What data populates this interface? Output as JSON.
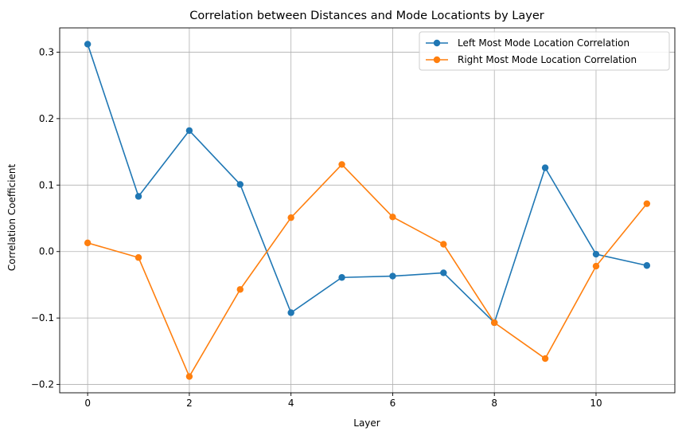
{
  "chart_data": {
    "type": "line",
    "title": "Correlation between Distances and Mode Locationts by Layer",
    "xlabel": "Layer",
    "ylabel": "Correlation Coefficient",
    "x": [
      0,
      1,
      2,
      3,
      4,
      5,
      6,
      7,
      8,
      9,
      10,
      11
    ],
    "xlim": [
      -0.55,
      11.55
    ],
    "ylim": [
      -0.2125,
      0.3365
    ],
    "xticks": [
      0,
      2,
      4,
      6,
      8,
      10
    ],
    "xtick_labels": [
      "0",
      "2",
      "4",
      "6",
      "8",
      "10"
    ],
    "yticks": [
      -0.2,
      -0.1,
      0.0,
      0.1,
      0.2,
      0.3
    ],
    "ytick_labels": [
      "−0.2",
      "−0.1",
      "0.0",
      "0.1",
      "0.2",
      "0.3"
    ],
    "grid": true,
    "legend_position": "upper-right",
    "series": [
      {
        "name": "Left Most Mode Location Correlation",
        "color": "#1f77b4",
        "marker": "circle",
        "values": [
          0.312,
          0.083,
          0.182,
          0.101,
          -0.092,
          -0.039,
          -0.037,
          -0.032,
          -0.107,
          0.126,
          -0.004,
          -0.021
        ]
      },
      {
        "name": "Right Most Mode Location Correlation",
        "color": "#ff7f0e",
        "marker": "circle",
        "values": [
          0.013,
          -0.009,
          -0.188,
          -0.057,
          0.051,
          0.131,
          0.052,
          0.011,
          -0.107,
          -0.161,
          -0.022,
          0.072
        ]
      }
    ]
  }
}
